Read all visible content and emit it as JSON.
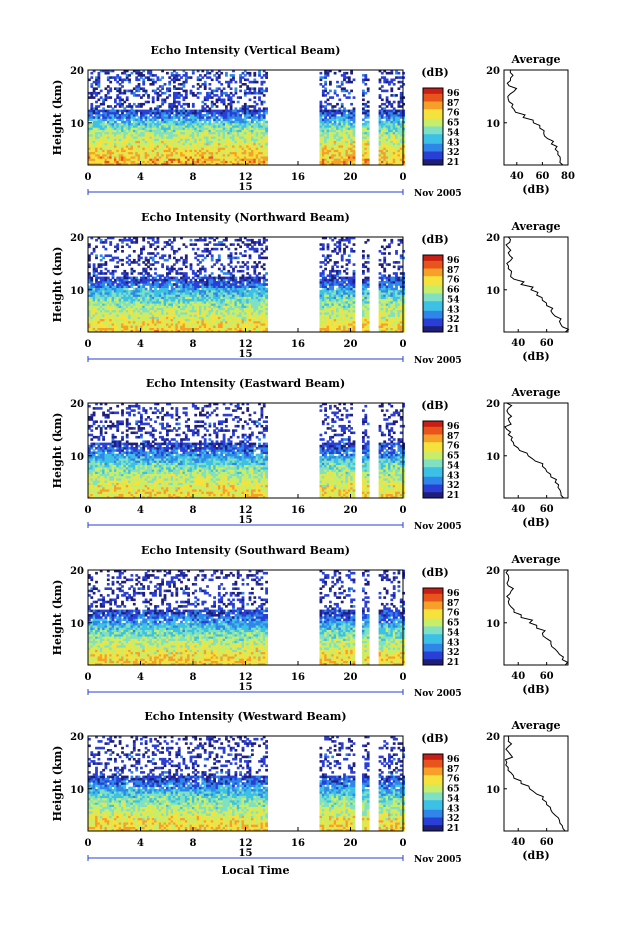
{
  "colors": {
    "colormap": [
      "#1f1f7a",
      "#2a3fd6",
      "#2f86e8",
      "#3cc0e6",
      "#7fe0c4",
      "#c6ee6a",
      "#f6e23c",
      "#f6a02a",
      "#e8551c",
      "#c81e16"
    ],
    "data_gap": "#ffffff",
    "axes": "#000000"
  },
  "chart_data": [
    {
      "type": "heatmap",
      "title": "Echo Intensity (Vertical Beam)",
      "ylabel": "Height (km)",
      "x_ticks": [
        "0",
        "4",
        "8",
        "12",
        "16",
        "20",
        "0"
      ],
      "y_ticks": [
        "20",
        "10"
      ],
      "ylim": [
        2,
        20
      ],
      "xlim_hours": [
        0,
        24
      ],
      "date_label": "15",
      "month_label": "Nov 2005",
      "missing_intervals_hours": [
        [
          13.7,
          17.7
        ],
        [
          20.4,
          20.8
        ],
        [
          21.5,
          22.2
        ]
      ],
      "colorbar": {
        "unit": "(dB)",
        "ticks": [
          "96",
          "87",
          "76",
          "65",
          "54",
          "43",
          "32",
          "21"
        ]
      },
      "average": {
        "title": "Average",
        "xlabel": "(dB)",
        "x_ticks": [
          "40",
          "60",
          "80"
        ],
        "y_ticks": [
          "20",
          "10"
        ],
        "xlim": [
          30,
          80
        ],
        "height_km": [
          2,
          3,
          4,
          5,
          6,
          7,
          8,
          9,
          10,
          11,
          12,
          13,
          14,
          15,
          16,
          17,
          18,
          19,
          20
        ],
        "db": [
          76,
          74,
          72,
          70,
          67,
          64,
          61,
          58,
          53,
          45,
          39,
          36,
          34,
          33,
          38,
          34,
          35,
          37,
          35
        ]
      }
    },
    {
      "type": "heatmap",
      "title": "Echo Intensity (Northward Beam)",
      "ylabel": "Height (km)",
      "x_ticks": [
        "0",
        "4",
        "8",
        "12",
        "16",
        "20",
        "0"
      ],
      "y_ticks": [
        "20",
        "10"
      ],
      "ylim": [
        2,
        20
      ],
      "xlim_hours": [
        0,
        24
      ],
      "date_label": "15",
      "month_label": "Nov 2005",
      "missing_intervals_hours": [
        [
          13.7,
          17.7
        ],
        [
          20.4,
          20.8
        ],
        [
          21.5,
          22.2
        ]
      ],
      "colorbar": {
        "unit": "(dB)",
        "ticks": [
          "96",
          "87",
          "76",
          "66",
          "54",
          "43",
          "32",
          "21"
        ]
      },
      "average": {
        "title": "Average",
        "xlabel": "(dB)",
        "x_ticks": [
          "40",
          "60"
        ],
        "y_ticks": [
          "20",
          "10"
        ],
        "xlim": [
          30,
          75
        ],
        "height_km": [
          2,
          3,
          4,
          5,
          6,
          7,
          8,
          9,
          10,
          11,
          12,
          13,
          14,
          15,
          16,
          17,
          18,
          19,
          20
        ],
        "db": [
          73,
          71,
          69,
          66,
          63,
          60,
          57,
          53,
          49,
          42,
          37,
          35,
          33,
          32,
          36,
          33,
          33,
          34,
          33
        ]
      }
    },
    {
      "type": "heatmap",
      "title": "Echo Intensity (Eastward Beam)",
      "ylabel": "Height (km)",
      "x_ticks": [
        "0",
        "4",
        "8",
        "12",
        "16",
        "20",
        "0"
      ],
      "y_ticks": [
        "20",
        "10"
      ],
      "ylim": [
        2,
        20
      ],
      "xlim_hours": [
        0,
        24
      ],
      "date_label": "15",
      "month_label": "Nov 2005",
      "missing_intervals_hours": [
        [
          13.7,
          17.7
        ],
        [
          20.4,
          20.8
        ],
        [
          21.5,
          22.2
        ]
      ],
      "colorbar": {
        "unit": "(dB)",
        "ticks": [
          "96",
          "87",
          "76",
          "65",
          "54",
          "43",
          "32",
          "21"
        ]
      },
      "average": {
        "title": "Average",
        "xlabel": "(dB)",
        "x_ticks": [
          "40",
          "60"
        ],
        "y_ticks": [
          "20",
          "10"
        ],
        "xlim": [
          30,
          75
        ],
        "height_km": [
          2,
          3,
          4,
          5,
          6,
          7,
          8,
          9,
          10,
          11,
          12,
          13,
          14,
          15,
          16,
          17,
          18,
          19,
          20
        ],
        "db": [
          72,
          70,
          68,
          66,
          63,
          60,
          57,
          52,
          47,
          41,
          37,
          35,
          33,
          32,
          35,
          33,
          33,
          33,
          32
        ]
      }
    },
    {
      "type": "heatmap",
      "title": "Echo Intensity (Southward Beam)",
      "ylabel": "Height (km)",
      "x_ticks": [
        "0",
        "4",
        "8",
        "12",
        "16",
        "20",
        "0"
      ],
      "y_ticks": [
        "20",
        "10"
      ],
      "ylim": [
        2,
        20
      ],
      "xlim_hours": [
        0,
        24
      ],
      "date_label": "15",
      "month_label": "Nov 2005",
      "missing_intervals_hours": [
        [
          13.7,
          17.7
        ],
        [
          20.4,
          20.8
        ],
        [
          21.5,
          22.2
        ]
      ],
      "colorbar": {
        "unit": "(dB)",
        "ticks": [
          "96",
          "87",
          "76",
          "65",
          "54",
          "43",
          "32",
          "21"
        ]
      },
      "average": {
        "title": "Average",
        "xlabel": "(dB)",
        "x_ticks": [
          "40",
          "60"
        ],
        "y_ticks": [
          "20",
          "10"
        ],
        "xlim": [
          30,
          75
        ],
        "height_km": [
          2,
          3,
          4,
          5,
          6,
          7,
          8,
          9,
          10,
          11,
          12,
          13,
          14,
          15,
          16,
          17,
          18,
          19,
          20
        ],
        "db": [
          73,
          71,
          69,
          66,
          63,
          60,
          57,
          53,
          48,
          42,
          37,
          35,
          33,
          32,
          35,
          33,
          33,
          33,
          33
        ]
      }
    },
    {
      "type": "heatmap",
      "title": "Echo Intensity (Westward Beam)",
      "ylabel": "Height (km)",
      "xlabel": "Local Time",
      "x_ticks": [
        "0",
        "4",
        "8",
        "12",
        "16",
        "20",
        "0"
      ],
      "y_ticks": [
        "20",
        "10"
      ],
      "ylim": [
        2,
        20
      ],
      "xlim_hours": [
        0,
        24
      ],
      "date_label": "15",
      "month_label": "Nov 2005",
      "missing_intervals_hours": [
        [
          13.7,
          17.7
        ],
        [
          20.4,
          20.8
        ],
        [
          21.5,
          22.2
        ]
      ],
      "colorbar": {
        "unit": "(dB)",
        "ticks": [
          "96",
          "87",
          "76",
          "65",
          "54",
          "43",
          "32",
          "21"
        ]
      },
      "average": {
        "title": "Average",
        "xlabel": "(dB)",
        "x_ticks": [
          "40",
          "60"
        ],
        "y_ticks": [
          "20",
          "10"
        ],
        "xlim": [
          30,
          75
        ],
        "height_km": [
          2,
          3,
          4,
          5,
          6,
          7,
          8,
          9,
          10,
          11,
          12,
          13,
          14,
          15,
          16,
          17,
          18,
          19,
          20
        ],
        "db": [
          73,
          71,
          69,
          66,
          63,
          60,
          57,
          53,
          48,
          42,
          37,
          35,
          33,
          32,
          36,
          33,
          33,
          33,
          33
        ]
      }
    }
  ]
}
